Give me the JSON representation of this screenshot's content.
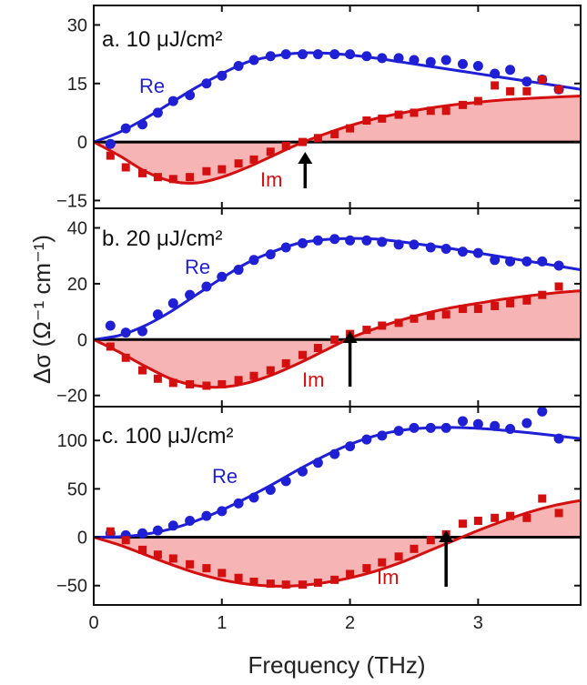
{
  "xlabel": "Frequency (THz)",
  "ylabel": "Δσ (Ω⁻¹ cm⁻¹)",
  "colors": {
    "re": "#1f1fd6",
    "im": "#d40f0f",
    "im_fill": "#f7b4b4",
    "zero_line": "#000000",
    "frame": "#111111"
  },
  "chart_data": [
    {
      "type": "line",
      "title": "a. 10 μJ/cm²",
      "xlim": [
        0,
        3.8
      ],
      "ylim": [
        -17,
        35
      ],
      "x_ticks": [
        0,
        1,
        2,
        3
      ],
      "y_ticks": [
        30,
        15,
        0,
        -15
      ],
      "re_label": "Re",
      "im_label": "Im",
      "arrow_x": 1.65,
      "series": [
        {
          "kind": "re_points",
          "x": [
            0.13,
            0.25,
            0.38,
            0.5,
            0.62,
            0.75,
            0.88,
            1.0,
            1.13,
            1.25,
            1.38,
            1.5,
            1.63,
            1.75,
            1.88,
            2.0,
            2.13,
            2.25,
            2.38,
            2.5,
            2.63,
            2.75,
            2.88,
            3.0,
            3.13,
            3.25,
            3.38,
            3.5,
            3.63
          ],
          "y": [
            -0.5,
            3.5,
            4.5,
            7.5,
            10.5,
            12,
            15,
            17,
            19.5,
            21,
            22,
            22.5,
            22.5,
            22.5,
            22.5,
            22.5,
            22,
            21.5,
            21.5,
            21,
            20.5,
            21,
            20,
            19.5,
            17.5,
            18.5,
            15.5,
            16,
            13.5
          ]
        },
        {
          "kind": "im_points",
          "x": [
            0.13,
            0.25,
            0.38,
            0.5,
            0.62,
            0.75,
            0.88,
            1.0,
            1.13,
            1.25,
            1.38,
            1.5,
            1.63,
            1.75,
            1.88,
            2.0,
            2.13,
            2.25,
            2.38,
            2.5,
            2.63,
            2.75,
            2.88,
            3.0,
            3.13,
            3.25,
            3.38,
            3.5,
            3.63
          ],
          "y": [
            -3.5,
            -6.5,
            -8,
            -9,
            -9.5,
            -9,
            -7.5,
            -7,
            -5.5,
            -4.5,
            -2.5,
            -1,
            0,
            1,
            2,
            3.5,
            5.5,
            6,
            7,
            7.5,
            8,
            8,
            9.5,
            10.5,
            14.5,
            13,
            13,
            16,
            13.5
          ]
        },
        {
          "kind": "re_fit",
          "x": [
            0,
            0.2,
            0.4,
            0.6,
            0.8,
            1.0,
            1.2,
            1.4,
            1.6,
            1.8,
            2.0,
            2.2,
            2.4,
            2.6,
            2.8,
            3.0,
            3.2,
            3.4,
            3.6,
            3.8
          ],
          "y": [
            0,
            2.5,
            6,
            10,
            14,
            17.5,
            20.5,
            22,
            22.8,
            22.8,
            22.3,
            21.5,
            20.5,
            19.5,
            18.5,
            17.5,
            16.5,
            15.5,
            14.5,
            13.5
          ]
        },
        {
          "kind": "im_fit",
          "x": [
            0,
            0.2,
            0.4,
            0.6,
            0.8,
            1.0,
            1.2,
            1.4,
            1.6,
            1.8,
            2.0,
            2.2,
            2.4,
            2.6,
            2.8,
            3.0,
            3.2,
            3.4,
            3.6,
            3.8
          ],
          "y": [
            0,
            -3.5,
            -7.5,
            -10,
            -10.5,
            -9,
            -6.5,
            -3.5,
            -0.5,
            2,
            4.2,
            6,
            7.4,
            8.6,
            9.5,
            10.2,
            10.8,
            11.2,
            11.5,
            11.8
          ]
        }
      ]
    },
    {
      "type": "line",
      "title": "b. 20 μJ/cm²",
      "xlim": [
        0,
        3.8
      ],
      "ylim": [
        -24,
        47
      ],
      "x_ticks": [
        0,
        1,
        2,
        3
      ],
      "y_ticks": [
        40,
        20,
        0,
        -20
      ],
      "re_label": "Re",
      "im_label": "Im",
      "arrow_x": 2.0,
      "series": [
        {
          "kind": "re_points",
          "x": [
            0.13,
            0.25,
            0.38,
            0.5,
            0.62,
            0.75,
            0.88,
            1.0,
            1.13,
            1.25,
            1.38,
            1.5,
            1.63,
            1.75,
            1.88,
            2.0,
            2.13,
            2.25,
            2.38,
            2.5,
            2.63,
            2.75,
            2.88,
            3.0,
            3.13,
            3.25,
            3.38,
            3.5,
            3.63
          ],
          "y": [
            5,
            2.5,
            3,
            9,
            13,
            16,
            19,
            22.5,
            25,
            28.5,
            30.5,
            33,
            34.5,
            35.5,
            36,
            35.5,
            35.5,
            35,
            34,
            34,
            33,
            32.5,
            31.5,
            31,
            28.5,
            28,
            28,
            28,
            26.5
          ]
        },
        {
          "kind": "im_points",
          "x": [
            0.13,
            0.25,
            0.38,
            0.5,
            0.62,
            0.75,
            0.88,
            1.0,
            1.13,
            1.25,
            1.38,
            1.5,
            1.63,
            1.75,
            1.88,
            2.0,
            2.13,
            2.25,
            2.38,
            2.5,
            2.63,
            2.75,
            2.88,
            3.0,
            3.13,
            3.25,
            3.38,
            3.5,
            3.63
          ],
          "y": [
            -2.5,
            -6.5,
            -11,
            -14,
            -15.5,
            -16,
            -16.5,
            -16,
            -14.5,
            -13,
            -11,
            -8.5,
            -5.5,
            -3,
            0,
            2,
            3.5,
            5,
            6,
            7.5,
            8.5,
            9,
            11,
            11,
            12,
            13,
            14,
            16,
            19
          ]
        },
        {
          "kind": "re_fit",
          "x": [
            0,
            0.2,
            0.4,
            0.6,
            0.8,
            1.0,
            1.2,
            1.4,
            1.6,
            1.8,
            2.0,
            2.2,
            2.4,
            2.6,
            2.8,
            3.0,
            3.2,
            3.4,
            3.6,
            3.8
          ],
          "y": [
            0,
            1.5,
            5,
            10,
            16,
            22,
            27.5,
            31.5,
            34.5,
            35.8,
            36.2,
            36,
            35,
            33.8,
            32.5,
            31,
            29.5,
            28,
            26.5,
            25
          ]
        },
        {
          "kind": "im_fit",
          "x": [
            0,
            0.2,
            0.4,
            0.6,
            0.8,
            1.0,
            1.2,
            1.4,
            1.6,
            1.8,
            2.0,
            2.2,
            2.4,
            2.6,
            2.8,
            3.0,
            3.2,
            3.4,
            3.6,
            3.8
          ],
          "y": [
            0,
            -4.5,
            -9.5,
            -14,
            -16.5,
            -17,
            -15.5,
            -12.5,
            -8.5,
            -4,
            0.5,
            4,
            7,
            9.5,
            11.5,
            13,
            14.5,
            15.7,
            16.7,
            17.5
          ]
        }
      ]
    },
    {
      "type": "line",
      "title": "c. 100 μJ/cm²",
      "xlim": [
        0,
        3.8
      ],
      "ylim": [
        -70,
        135
      ],
      "x_ticks": [
        0,
        1,
        2,
        3
      ],
      "y_ticks": [
        100,
        50,
        0,
        -50
      ],
      "re_label": "Re",
      "im_label": "Im",
      "arrow_x": 2.75,
      "series": [
        {
          "kind": "re_points",
          "x": [
            0.13,
            0.25,
            0.38,
            0.5,
            0.62,
            0.75,
            0.88,
            1.0,
            1.13,
            1.25,
            1.38,
            1.5,
            1.63,
            1.75,
            1.88,
            2.0,
            2.13,
            2.25,
            2.38,
            2.5,
            2.63,
            2.75,
            2.88,
            3.0,
            3.13,
            3.25,
            3.38,
            3.5,
            3.63
          ],
          "y": [
            4,
            2,
            4,
            7,
            12,
            17,
            22,
            27,
            35,
            41,
            49,
            58,
            68,
            77,
            86,
            94,
            101,
            105,
            110,
            113,
            113,
            113,
            120,
            117,
            115,
            112,
            118,
            130,
            102
          ]
        },
        {
          "kind": "im_points",
          "x": [
            0.13,
            0.25,
            0.38,
            0.5,
            0.62,
            0.75,
            0.88,
            1.0,
            1.13,
            1.25,
            1.38,
            1.5,
            1.63,
            1.75,
            1.88,
            2.0,
            2.13,
            2.25,
            2.38,
            2.5,
            2.63,
            2.75,
            2.88,
            3.0,
            3.13,
            3.25,
            3.38,
            3.5,
            3.63
          ],
          "y": [
            6,
            -3,
            -13,
            -18,
            -22,
            -28,
            -32,
            -37,
            -42,
            -46,
            -48,
            -49,
            -49,
            -47,
            -44,
            -38,
            -32,
            -26,
            -20,
            -12,
            -3,
            3,
            14,
            17,
            20,
            22,
            20,
            40,
            25
          ]
        },
        {
          "kind": "re_fit",
          "x": [
            0,
            0.2,
            0.4,
            0.6,
            0.8,
            1.0,
            1.2,
            1.4,
            1.6,
            1.8,
            2.0,
            2.2,
            2.4,
            2.6,
            2.8,
            3.0,
            3.2,
            3.4,
            3.6,
            3.8
          ],
          "y": [
            0,
            0.5,
            3,
            8.5,
            17,
            28,
            41,
            55,
            70,
            84,
            96,
            105,
            110.5,
            113,
            113.5,
            112.5,
            110.5,
            108,
            105,
            102
          ]
        },
        {
          "kind": "im_fit",
          "x": [
            0,
            0.2,
            0.4,
            0.6,
            0.8,
            1.0,
            1.2,
            1.4,
            1.6,
            1.8,
            2.0,
            2.2,
            2.4,
            2.6,
            2.8,
            3.0,
            3.2,
            3.4,
            3.6,
            3.8
          ],
          "y": [
            0,
            -8,
            -18,
            -28,
            -37,
            -44,
            -48.5,
            -50.5,
            -50,
            -47,
            -42,
            -35,
            -26,
            -15,
            -4,
            7,
            17,
            26,
            33,
            38
          ]
        }
      ]
    }
  ]
}
